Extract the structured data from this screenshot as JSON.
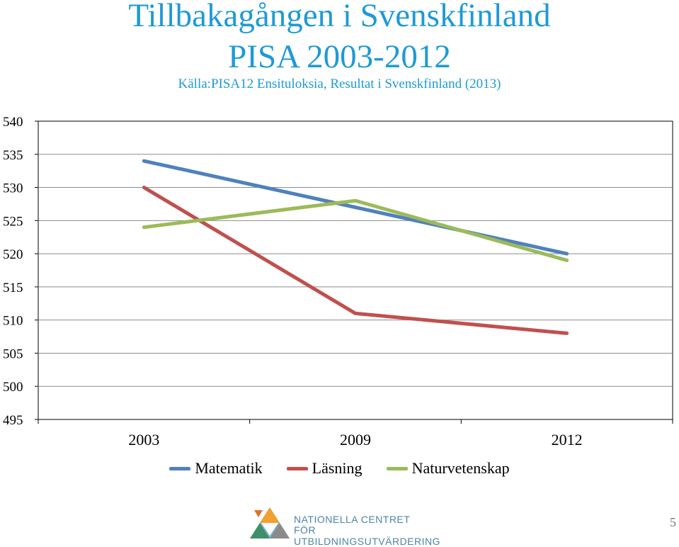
{
  "slide": {
    "title_line1": "Tillbakagången i Svenskfinland",
    "title_line2": "PISA 2003-2012",
    "source": "Källa:PISA12 Ensituloksia, Resultat i Svenskfinland (2013)",
    "logo_line1": "NATIONELLA CENTRET",
    "logo_line2": "FÖR UTBILDNINGSUTVÄRDERING",
    "page_number": "5"
  },
  "chart_data": {
    "type": "line",
    "categories": [
      "2003",
      "2009",
      "2012"
    ],
    "ylim": [
      495,
      540
    ],
    "yticks": [
      495,
      500,
      505,
      510,
      515,
      520,
      525,
      530,
      535,
      540
    ],
    "grid": true,
    "legend_position": "bottom",
    "series": [
      {
        "name": "Matematik",
        "color": "#4f81bd",
        "values": [
          534,
          527,
          520
        ]
      },
      {
        "name": "Läsning",
        "color": "#c0504d",
        "values": [
          530,
          511,
          508
        ]
      },
      {
        "name": "Naturvetenskap",
        "color": "#9bbb59",
        "values": [
          524,
          528,
          519
        ]
      }
    ]
  }
}
